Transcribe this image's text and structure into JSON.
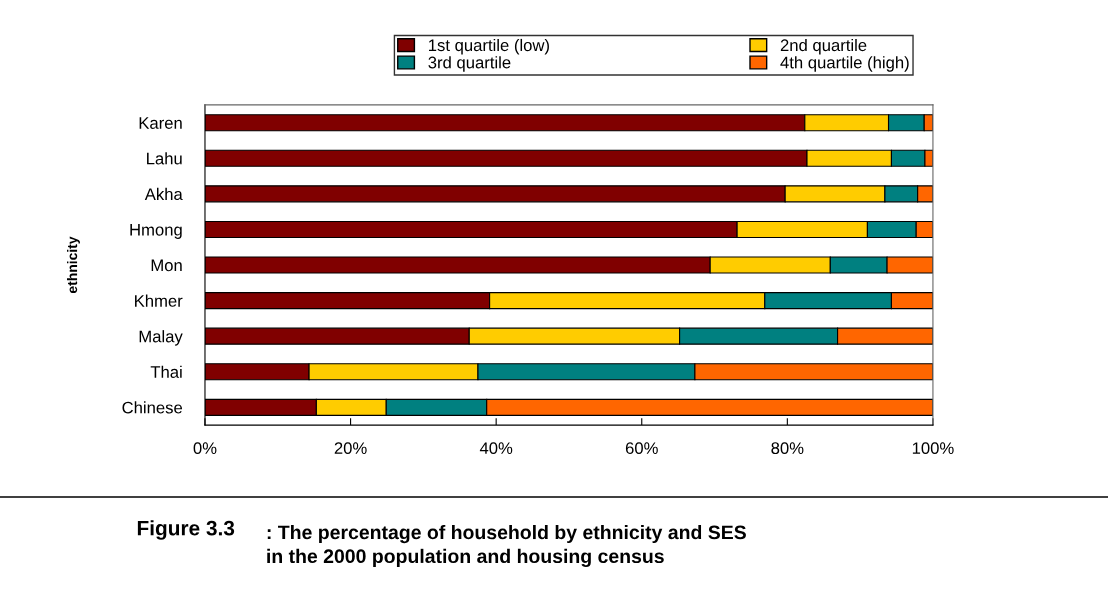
{
  "chart_data": {
    "type": "bar",
    "orientation": "horizontal",
    "stacked": true,
    "title": "Figure 3.3",
    "subtitle": ": The percentage of household by ethnicity and SES\nin the 2000 population and housing census",
    "ylabel": "ethnicity",
    "categories": [
      "Karen",
      "Lahu",
      "Akha",
      "Hmong",
      "Mon",
      "Khmer",
      "Malay",
      "Thai",
      "Chinese"
    ],
    "series": [
      {
        "name": "1st quartile (low)",
        "color": "#800000",
        "values": [
          82.4,
          82.7,
          79.7,
          73.1,
          69.4,
          39.1,
          36.3,
          14.3,
          15.3
        ]
      },
      {
        "name": "2nd quartile",
        "color": "#ffcc00",
        "values": [
          11.5,
          11.6,
          13.7,
          17.9,
          16.5,
          37.8,
          28.9,
          23.2,
          9.6
        ]
      },
      {
        "name": "3rd quartile",
        "color": "#008080",
        "values": [
          4.9,
          4.6,
          4.5,
          6.7,
          7.8,
          17.4,
          21.7,
          29.8,
          13.8
        ]
      },
      {
        "name": "4th quartile (high)",
        "color": "#ff6600",
        "values": [
          1.2,
          1.1,
          2.1,
          2.3,
          6.3,
          5.7,
          13.1,
          32.7,
          61.3
        ]
      }
    ],
    "xlim": [
      0,
      100
    ],
    "xticks": [
      {
        "value": 0,
        "label": "0%"
      },
      {
        "value": 20,
        "label": "20%"
      },
      {
        "value": 40,
        "label": "40%"
      },
      {
        "value": 60,
        "label": "60%"
      },
      {
        "value": 80,
        "label": "80%"
      },
      {
        "value": 100,
        "label": "100%"
      }
    ],
    "legend": "top",
    "grid": false
  }
}
